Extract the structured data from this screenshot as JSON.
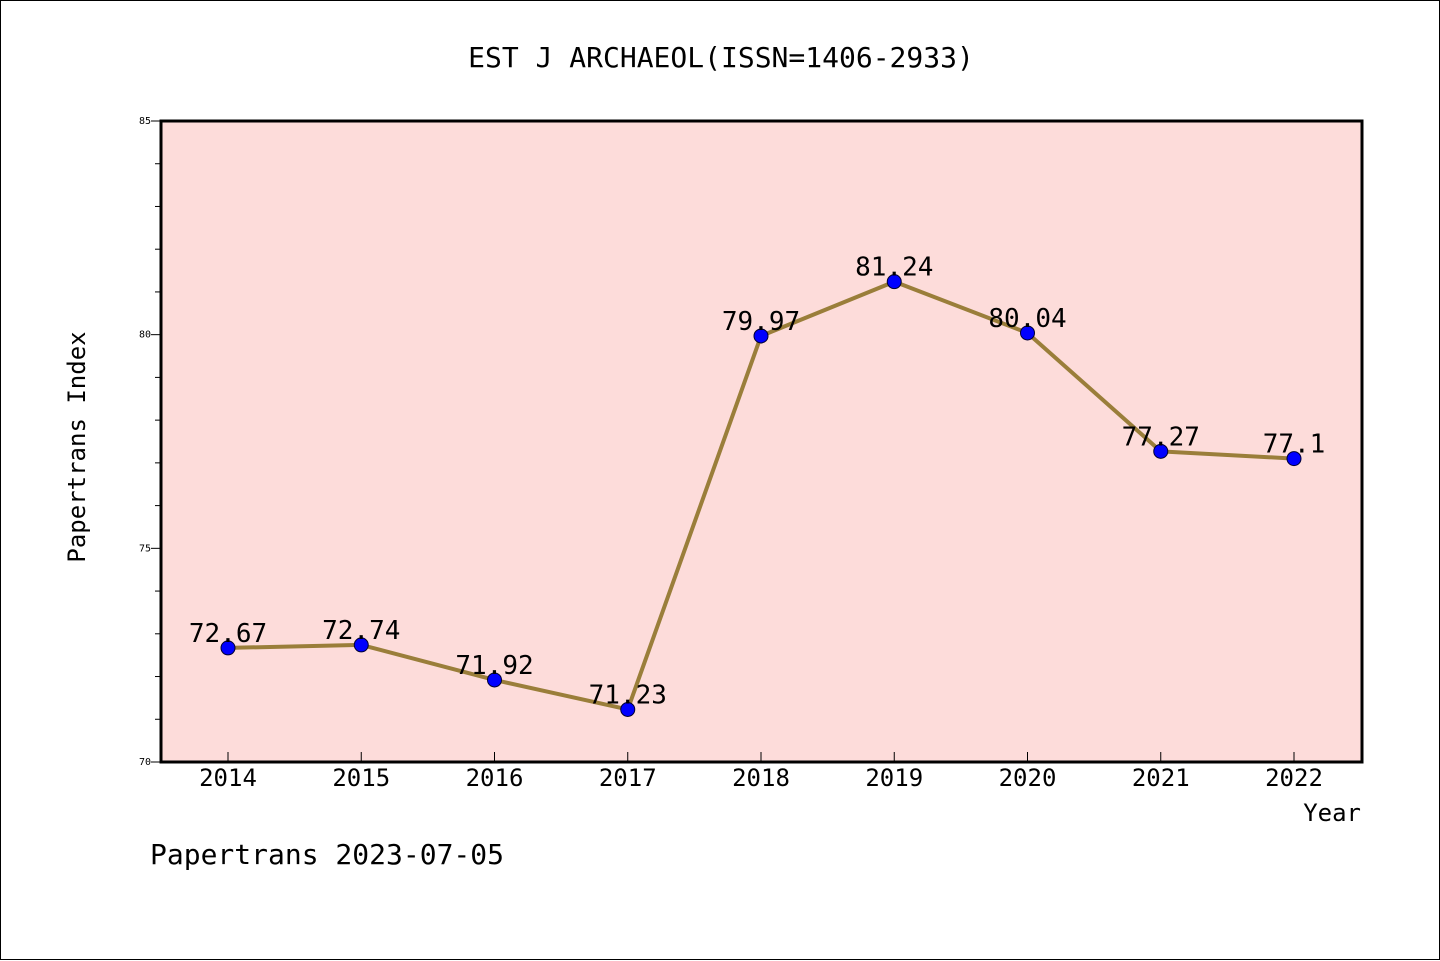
{
  "chart_data": {
    "type": "line",
    "title": "EST J ARCHAEOL(ISSN=1406-2933)",
    "xlabel": "Year",
    "ylabel": "Papertrans Index",
    "categories": [
      "2014",
      "2015",
      "2016",
      "2017",
      "2018",
      "2019",
      "2020",
      "2021",
      "2022"
    ],
    "series": [
      {
        "values": [
          72.67,
          72.74,
          71.92,
          71.23,
          79.97,
          81.24,
          80.04,
          77.27,
          77.1
        ],
        "labels": [
          "72.67",
          "72.74",
          "71.92",
          "71.23",
          "79.97",
          "81.24",
          "80.04",
          "77.27",
          "77.1"
        ]
      }
    ],
    "ylim": [
      70,
      85
    ],
    "y_ticks": [
      70,
      75,
      80,
      85
    ],
    "y_minor_step": 1,
    "grid": false,
    "plot_background": "#FDDCDA",
    "line_color": "#9A7E3A",
    "marker_color": "#0000FF"
  },
  "footer": {
    "note": "Papertrans 2023-07-05"
  }
}
